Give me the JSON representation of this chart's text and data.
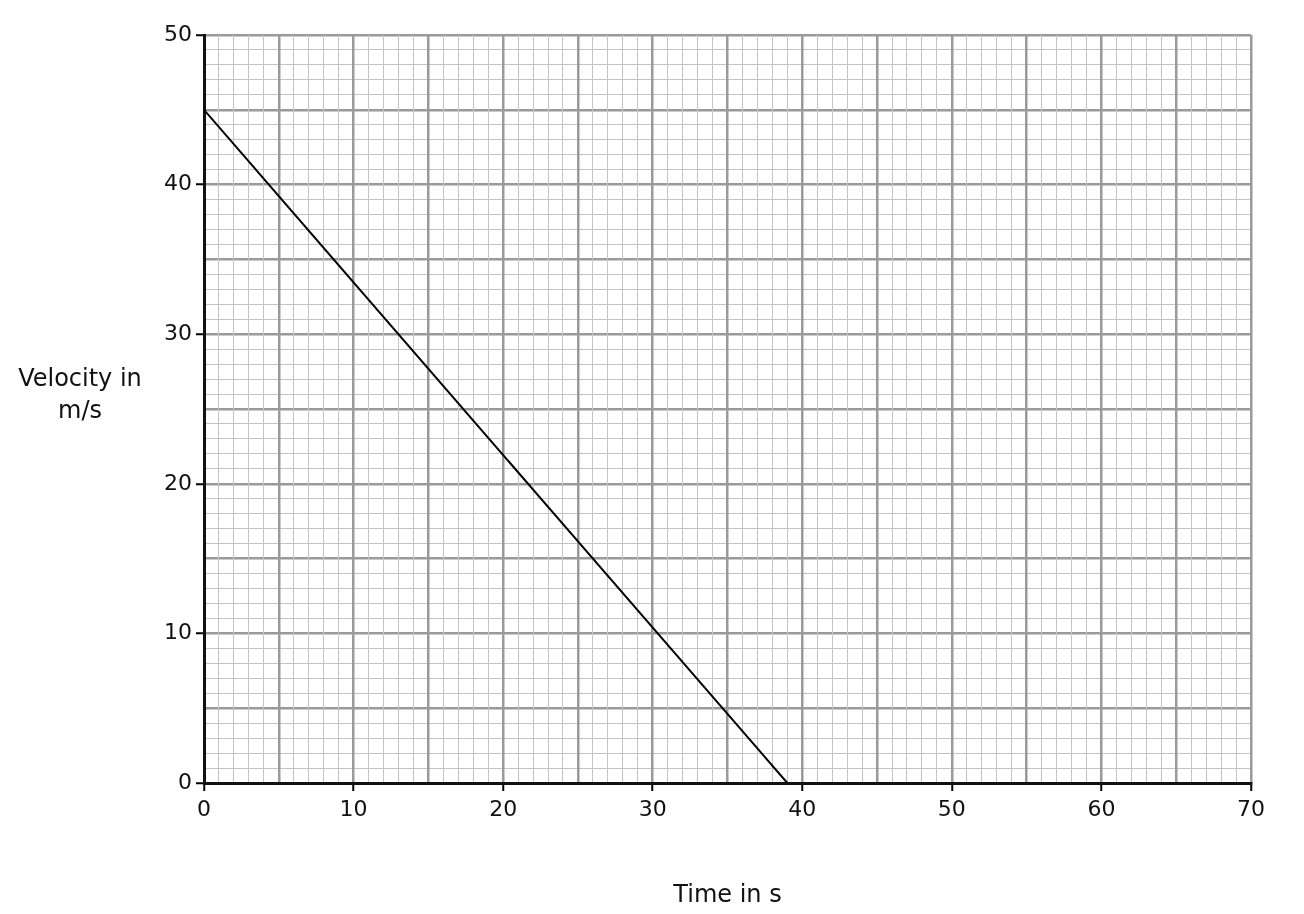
{
  "chart_data": {
    "type": "line",
    "xlabel": "Time in s",
    "ylabel": "Velocity in m/s",
    "x": [
      0,
      39
    ],
    "series": [
      {
        "color": "#000000",
        "values": [
          45,
          0
        ]
      }
    ],
    "xlim": [
      0,
      70
    ],
    "ylim": [
      0,
      50
    ],
    "xticks": [
      0,
      {
        "value": 1,
        "label": null
      },
      {
        "value": 2,
        "label": null
      },
      {
        "value": 3,
        "label": null
      },
      {
        "value": 4,
        "label": null
      },
      {
        "value": 5,
        "label": null
      },
      {
        "value": 6,
        "label": null
      },
      {
        "value": 7,
        "label": null
      },
      {
        "value": 8,
        "label": null
      },
      {
        "value": 9,
        "label": null
      },
      10,
      {
        "value": 11,
        "label": null
      },
      {
        "value": 12,
        "label": null
      },
      {
        "value": 13,
        "label": null
      },
      {
        "value": 14,
        "label": null
      },
      {
        "value": 15,
        "label": null
      },
      {
        "value": 16,
        "label": null
      },
      {
        "value": 17,
        "label": null
      },
      {
        "value": 18,
        "label": null
      },
      {
        "value": 19,
        "label": null
      },
      20,
      {
        "value": 21,
        "label": null
      },
      {
        "value": 22,
        "label": null
      },
      {
        "value": 23,
        "label": null
      },
      {
        "value": 24,
        "label": null
      },
      {
        "value": 25,
        "label": null
      },
      {
        "value": 26,
        "label": null
      },
      {
        "value": 27,
        "label": null
      },
      {
        "value": 28,
        "label": null
      },
      {
        "value": 29,
        "label": null
      },
      30,
      {
        "value": 31,
        "label": null
      },
      {
        "value": 32,
        "label": null
      },
      {
        "value": 33,
        "label": null
      },
      {
        "value": 34,
        "label": null
      },
      {
        "value": 35,
        "label": null
      },
      {
        "value": 36,
        "label": null
      },
      {
        "value": 37,
        "label": null
      },
      {
        "value": 38,
        "label": null
      },
      {
        "value": 39,
        "label": null
      },
      40,
      {
        "value": 41,
        "label": null
      },
      {
        "value": 42,
        "label": null
      },
      {
        "value": 43,
        "label": null
      },
      {
        "value": 44,
        "label": null
      },
      {
        "value": 45,
        "label": null
      },
      {
        "value": 46,
        "label": null
      },
      {
        "value": 47,
        "label": null
      },
      {
        "value": 48,
        "label": null
      },
      {
        "value": 49,
        "label": null
      },
      50,
      {
        "value": 51,
        "label": null
      },
      {
        "value": 52,
        "label": null
      },
      {
        "value": 53,
        "label": null
      },
      {
        "value": 54,
        "label": null
      },
      {
        "value": 55,
        "label": null
      },
      {
        "value": 56,
        "label": null
      },
      {
        "value": 57,
        "label": null
      },
      {
        "value": 58,
        "label": null
      },
      {
        "value": 59,
        "label": null
      },
      60,
      {
        "value": 61,
        "label": null
      },
      {
        "value": 62,
        "label": null
      },
      {
        "value": 63,
        "label": null
      },
      {
        "value": 64,
        "label": null
      },
      {
        "value": 65,
        "label": null
      },
      {
        "value": 66,
        "label": null
      },
      {
        "value": 67,
        "label": null
      },
      {
        "value": 68,
        "label": null
      },
      {
        "value": 69,
        "label": null
      },
      70
    ],
    "yticks": [
      0,
      {
        "value": 1,
        "label": null
      },
      {
        "value": 2,
        "label": null
      },
      {
        "value": 3,
        "label": null
      },
      {
        "value": 4,
        "label": null
      },
      {
        "value": 5,
        "label": null
      },
      {
        "value": 6,
        "label": null
      },
      {
        "value": 7,
        "label": null
      },
      {
        "value": 8,
        "label": null
      },
      {
        "value": 9,
        "label": null
      },
      10,
      {
        "value": 11,
        "label": null
      },
      {
        "value": 12,
        "label": null
      },
      {
        "value": 13,
        "label": null
      },
      {
        "value": 14,
        "label": null
      },
      {
        "value": 15,
        "label": null
      },
      {
        "value": 16,
        "label": null
      },
      {
        "value": 17,
        "label": null
      },
      {
        "value": 18,
        "label": null
      },
      {
        "value": 19,
        "label": null
      },
      20,
      {
        "value": 21,
        "label": null
      },
      {
        "value": 22,
        "label": null
      },
      {
        "value": 23,
        "label": null
      },
      {
        "value": 24,
        "label": null
      },
      {
        "value": 25,
        "label": null
      },
      {
        "value": 26,
        "label": null
      },
      {
        "value": 27,
        "label": null
      },
      {
        "value": 28,
        "label": null
      },
      {
        "value": 29,
        "label": null
      },
      30,
      {
        "value": 31,
        "label": null
      },
      {
        "value": 32,
        "label": null
      },
      {
        "value": 33,
        "label": null
      },
      {
        "value": 34,
        "label": null
      },
      {
        "value": 35,
        "label": null
      },
      {
        "value": 36,
        "label": null
      },
      {
        "value": 37,
        "label": null
      },
      {
        "value": 38,
        "label": null
      },
      {
        "value": 39,
        "label": null
      },
      40,
      {
        "value": 41,
        "label": null
      },
      {
        "value": 42,
        "label": null
      },
      {
        "value": 43,
        "label": null
      },
      {
        "value": 44,
        "label": null
      },
      {
        "value": 45,
        "label": null
      },
      {
        "value": 46,
        "label": null
      },
      {
        "value": 47,
        "label": null
      },
      {
        "value": 48,
        "label": null
      },
      {
        "value": 49,
        "label": null
      },
      50
    ],
    "grid": true,
    "marker": "none",
    "line_style": "solid",
    "legend": false
  }
}
